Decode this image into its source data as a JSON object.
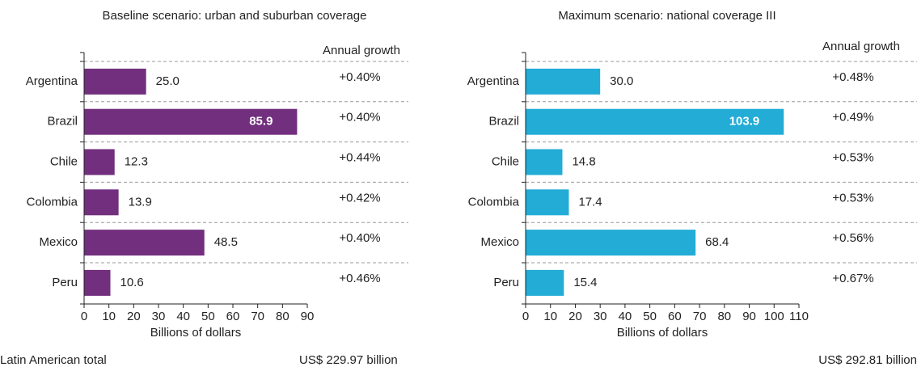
{
  "total_label": "Latin American total",
  "chart_data": [
    {
      "type": "bar",
      "orientation": "horizontal",
      "title": "Baseline scenario: urban and suburban coverage",
      "categories": [
        "Argentina",
        "Brazil",
        "Chile",
        "Colombia",
        "Mexico",
        "Peru"
      ],
      "values": [
        25,
        85.9,
        12.3,
        13.9,
        48.5,
        10.6
      ],
      "value_labels": [
        "25.0",
        "85.9",
        "12.3",
        "13.9",
        "48.5",
        "10.6"
      ],
      "color": "#722f7e",
      "xlim": [
        0,
        90
      ],
      "xticks": [
        0,
        10,
        20,
        30,
        40,
        50,
        60,
        70,
        80,
        90
      ],
      "xlabel": "Billions of dollars",
      "growth_header": "Annual growth",
      "growth": [
        "+0.40%",
        "+0.40%",
        "+0.44%",
        "+0.42%",
        "+0.40%",
        "+0.46%"
      ],
      "total": "US$ 229.97 billion"
    },
    {
      "type": "bar",
      "orientation": "horizontal",
      "title": "Maximum scenario: national coverage III",
      "categories": [
        "Argentina",
        "Brazil",
        "Chile",
        "Colombia",
        "Mexico",
        "Peru"
      ],
      "values": [
        30,
        103.9,
        14.8,
        17.4,
        68.4,
        15.4
      ],
      "value_labels": [
        "30.0",
        "103.9",
        "14.8",
        "17.4",
        "68.4",
        "15.4"
      ],
      "color": "#22acd6",
      "xlim": [
        0,
        110
      ],
      "xticks": [
        0,
        10,
        20,
        30,
        40,
        50,
        60,
        70,
        80,
        90,
        100,
        110
      ],
      "xlabel": "Billions of dollars",
      "growth_header": "Annual growth",
      "growth": [
        "+0.48%",
        "+0.49%",
        "+0.53%",
        "+0.53%",
        "+0.56%",
        "+0.67%"
      ],
      "total": "US$ 292.81 billion"
    }
  ]
}
